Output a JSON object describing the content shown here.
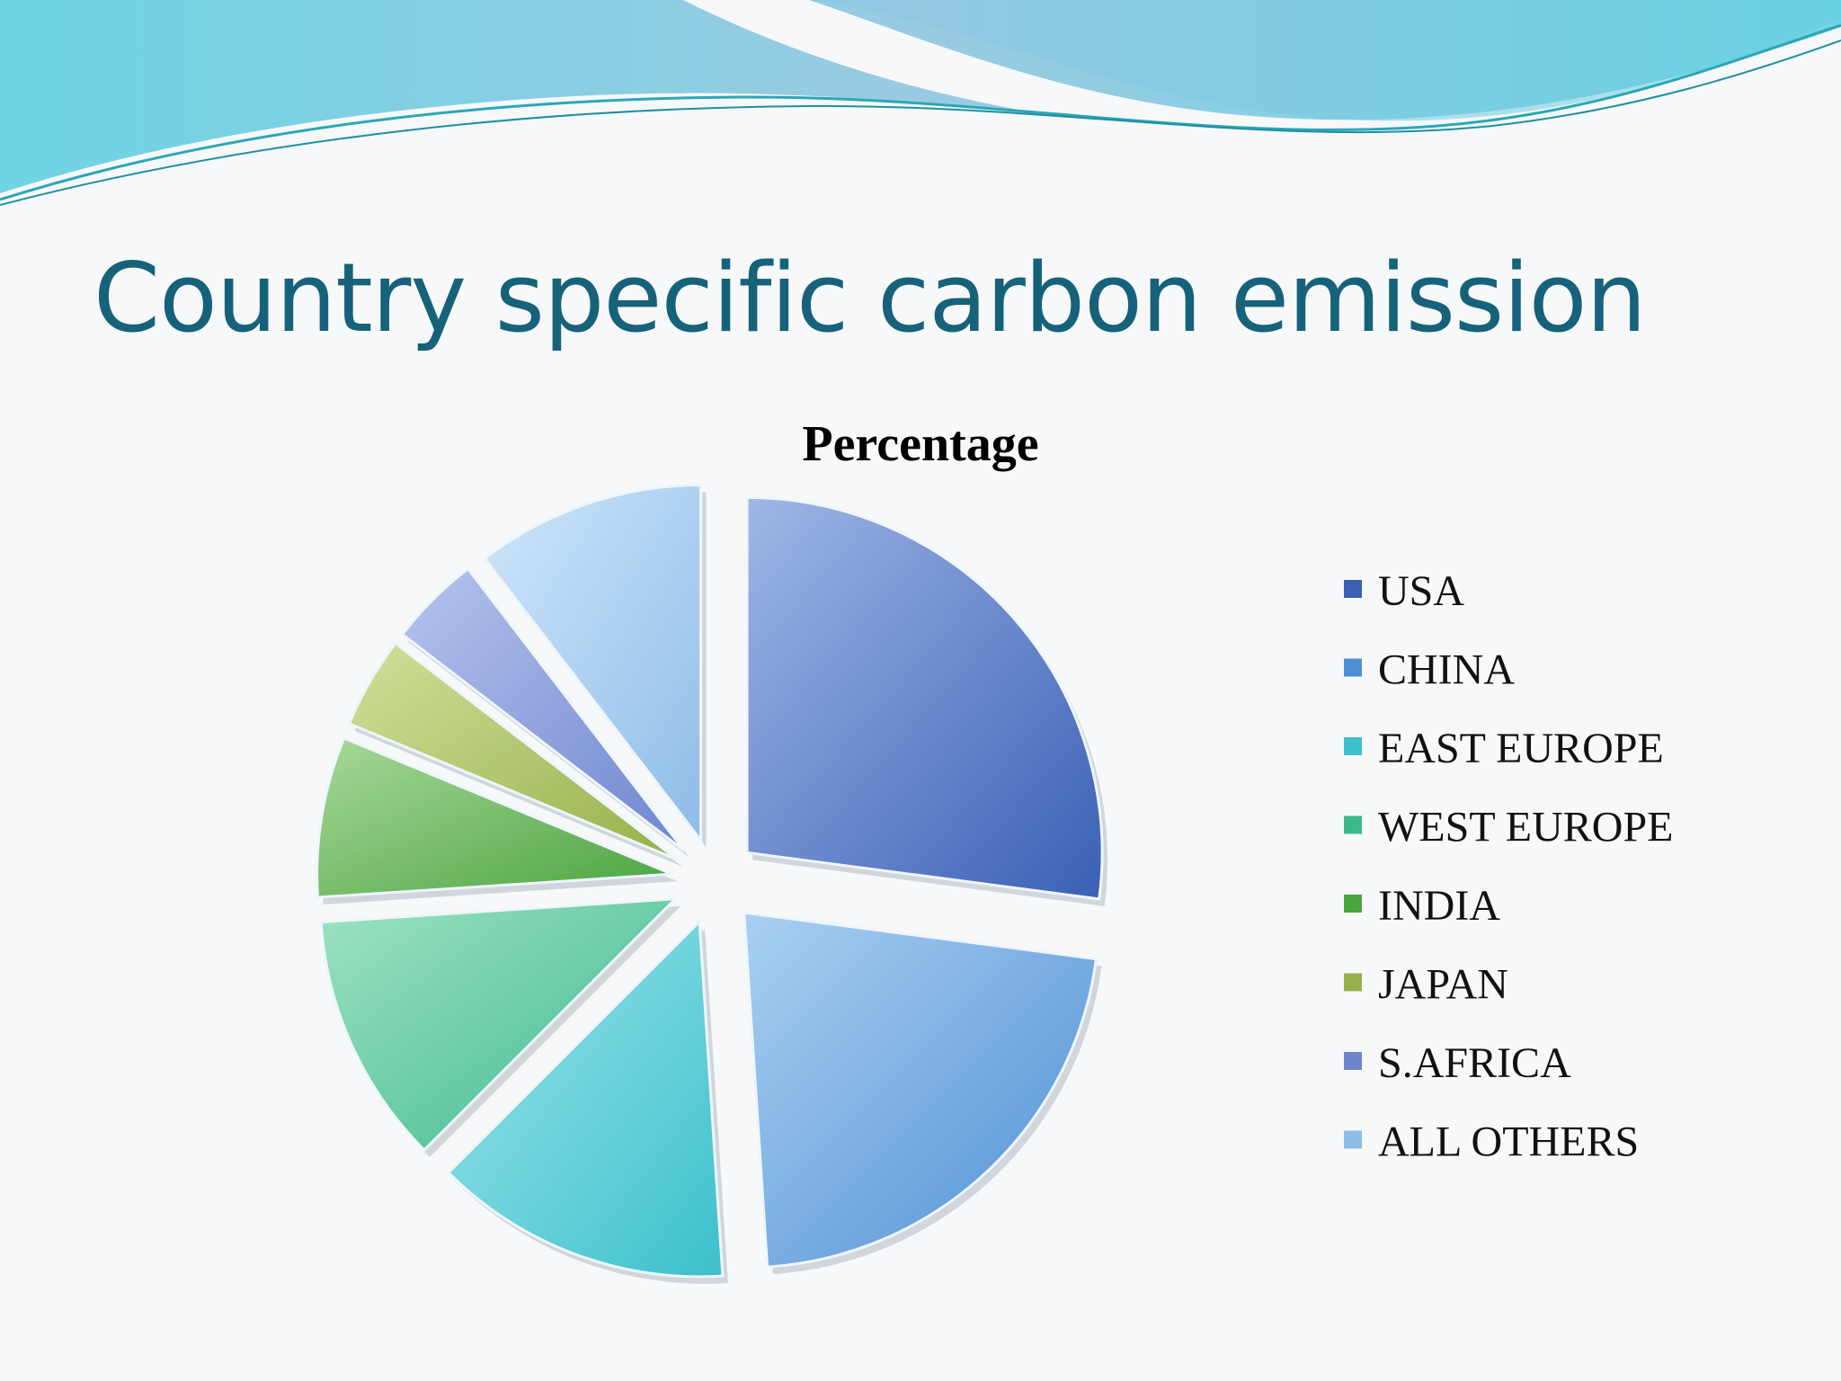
{
  "slide": {
    "title": "Country specific carbon emission"
  },
  "chart_data": {
    "type": "pie",
    "title": "Percentage",
    "categories": [
      "USA",
      "CHINA",
      "EAST EUROPE",
      "WEST EUROPE",
      "INDIA",
      "JAPAN",
      "S.AFRICA",
      "ALL OTHERS"
    ],
    "values": [
      26,
      21,
      13,
      11,
      7,
      4,
      4,
      10
    ],
    "unit": "%",
    "exploded": true,
    "legend_position": "right",
    "colors": [
      "#3a5fb5",
      "#4f8fd3",
      "#3cc0cc",
      "#3cb98a",
      "#4aa43f",
      "#98b04a",
      "#6f86cf",
      "#8fbce8"
    ],
    "highlight_colors": [
      "#9fb6e6",
      "#a9d0f2",
      "#9ee5ea",
      "#9fe2c4",
      "#a8d89a",
      "#cfe09a",
      "#b6c3ee",
      "#cfe6fb"
    ]
  }
}
